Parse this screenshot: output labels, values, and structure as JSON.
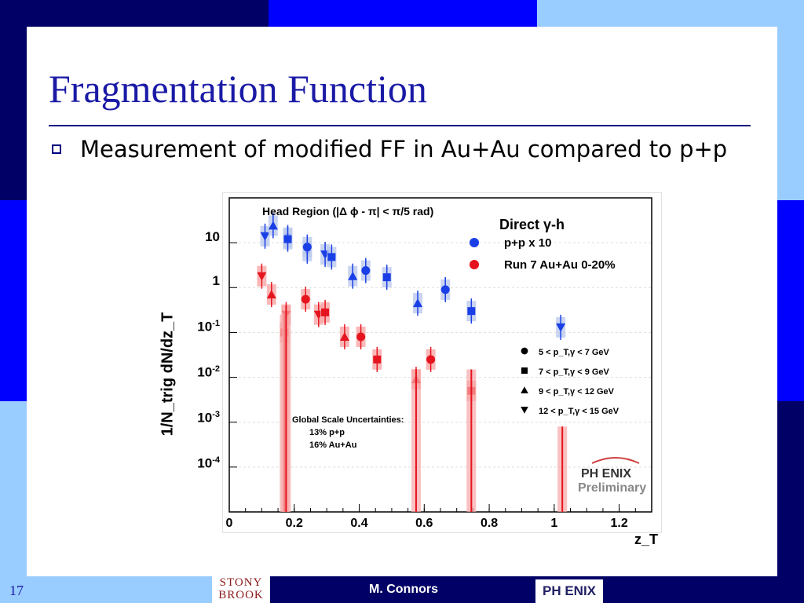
{
  "slide": {
    "title": "Fragmentation Function",
    "bullet": "Measurement of modified FF in Au+Au compared to p+p",
    "slide_number": "17",
    "footer_author": "M. Connors",
    "logo_left": "STONY BROOK",
    "logo_right": "PH ENIX"
  },
  "colors": {
    "dark_navy": "#000066",
    "mid_blue": "#0000ff",
    "light_blue": "#99ccff",
    "title_blue": "#1a1aa6",
    "pp_blue": "#1a3fe6",
    "auau_red": "#e6141e",
    "auau_band": "#f7a6a6",
    "pp_band": "#bcc9ee"
  },
  "chart_data": {
    "type": "scatter",
    "title": "Head Region (|Δ ϕ - π| < π/5 rad)",
    "legend_title": "Direct γ-h",
    "xlabel": "z_T",
    "ylabel": "1/N_trig dN/dz_T",
    "xlim": [
      0,
      1.3
    ],
    "ylim": [
      1e-05,
      100
    ],
    "y_scale": "log",
    "x_ticks": [
      "0",
      "0.2",
      "0.4",
      "0.6",
      "0.8",
      "1",
      "1.2"
    ],
    "y_ticks": [
      {
        "base": "10",
        "exp": ""
      },
      {
        "base": "1",
        "exp": ""
      },
      {
        "base": "10",
        "exp": "-1"
      },
      {
        "base": "10",
        "exp": "-2"
      },
      {
        "base": "10",
        "exp": "-3"
      },
      {
        "base": "10",
        "exp": "-4"
      }
    ],
    "series": [
      {
        "name": "p+p x 10",
        "color": "#1a3fe6",
        "points": [
          {
            "x": 0.11,
            "y": 14,
            "marker": "triangle-down"
          },
          {
            "x": 0.135,
            "y": 24,
            "marker": "triangle-up"
          },
          {
            "x": 0.18,
            "y": 13,
            "marker": "circle"
          },
          {
            "x": 0.18,
            "y": 12,
            "marker": "square"
          },
          {
            "x": 0.24,
            "y": 6.5,
            "marker": "triangle-down"
          },
          {
            "x": 0.24,
            "y": 8,
            "marker": "circle"
          },
          {
            "x": 0.295,
            "y": 5.5,
            "marker": "triangle-down"
          },
          {
            "x": 0.315,
            "y": 4.8,
            "marker": "square"
          },
          {
            "x": 0.38,
            "y": 1.8,
            "marker": "triangle-up"
          },
          {
            "x": 0.42,
            "y": 2.4,
            "marker": "circle"
          },
          {
            "x": 0.485,
            "y": 1.7,
            "marker": "square"
          },
          {
            "x": 0.58,
            "y": 0.45,
            "marker": "triangle-up"
          },
          {
            "x": 0.665,
            "y": 0.9,
            "marker": "circle"
          },
          {
            "x": 0.745,
            "y": 0.3,
            "marker": "square"
          },
          {
            "x": 1.02,
            "y": 0.13,
            "marker": "triangle-down"
          }
        ]
      },
      {
        "name": "Run 7 Au+Au 0-20%",
        "color": "#e6141e",
        "points": [
          {
            "x": 0.1,
            "y": 1.8,
            "marker": "triangle-down"
          },
          {
            "x": 0.13,
            "y": 0.7,
            "marker": "triangle-up"
          },
          {
            "x": 0.17,
            "y": 0.1,
            "marker": "square"
          },
          {
            "x": 0.175,
            "y": 0.25,
            "marker": "triangle-down"
          },
          {
            "x": 0.235,
            "y": 0.55,
            "marker": "circle"
          },
          {
            "x": 0.275,
            "y": 0.25,
            "marker": "triangle-down"
          },
          {
            "x": 0.295,
            "y": 0.28,
            "marker": "square"
          },
          {
            "x": 0.355,
            "y": 0.08,
            "marker": "triangle-up"
          },
          {
            "x": 0.405,
            "y": 0.08,
            "marker": "circle"
          },
          {
            "x": 0.455,
            "y": 0.025,
            "marker": "square"
          },
          {
            "x": 0.575,
            "y": 0.009,
            "marker": "triangle-up"
          },
          {
            "x": 0.62,
            "y": 0.025,
            "marker": "circle"
          },
          {
            "x": 0.745,
            "y": 0.005,
            "marker": "square"
          }
        ]
      }
    ],
    "marker_legend": [
      {
        "marker": "circle",
        "range": "5 < p_T,γ < 7 GeV"
      },
      {
        "marker": "square",
        "range": "7 < p_T,γ < 9 GeV"
      },
      {
        "marker": "triangle-up",
        "range": "9 < p_T,γ < 12 GeV"
      },
      {
        "marker": "triangle-down",
        "range": "12 < p_T,γ < 15 GeV"
      }
    ],
    "annotation_lines": [
      "Global Scale Uncertainties:",
      "13% p+p",
      "16% Au+Au"
    ],
    "watermark_lines": [
      "PH ENIX",
      "Preliminary"
    ]
  }
}
